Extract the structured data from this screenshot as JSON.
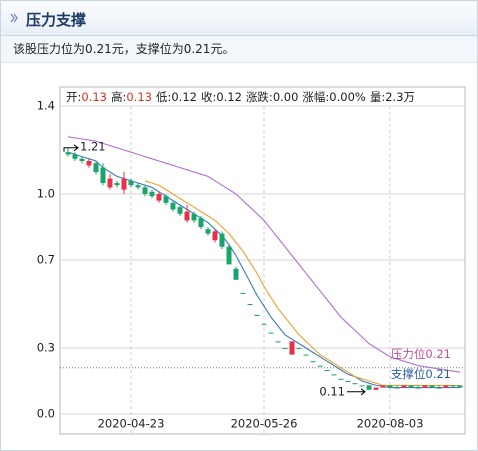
{
  "header": {
    "title": "压力支撑"
  },
  "summary": "该股压力位为0.21元，支撑位为0.21元。",
  "chart_data": {
    "type": "candlestick",
    "info": [
      {
        "label": "开:",
        "value": "0.13",
        "color": "#e0301e"
      },
      {
        "label": "高:",
        "value": "0.13",
        "color": "#e0301e"
      },
      {
        "label": "低:",
        "value": "0.12",
        "color": "#222222"
      },
      {
        "label": "收:",
        "value": "0.12",
        "color": "#222222"
      },
      {
        "label": "涨跌:",
        "value": "0.00",
        "color": "#222222"
      },
      {
        "label": "涨幅:",
        "value": "0.00%",
        "color": "#222222"
      },
      {
        "label": "量:",
        "value": "2.3万",
        "color": "#222222"
      }
    ],
    "categories": [
      null,
      null,
      null,
      null,
      null,
      null,
      null,
      null,
      null,
      "2020-04-23",
      null,
      null,
      null,
      null,
      null,
      null,
      null,
      null,
      null,
      null,
      null,
      null,
      null,
      null,
      null,
      null,
      null,
      null,
      "2020-05-26",
      null,
      null,
      null,
      null,
      null,
      null,
      null,
      null,
      null,
      null,
      null,
      null,
      null,
      null,
      null,
      null,
      null,
      "2020-08-03",
      null,
      null,
      null,
      null,
      null,
      null,
      null,
      null,
      null,
      null
    ],
    "open": [
      1.19,
      1.18,
      1.16,
      1.13,
      1.14,
      1.12,
      1.03,
      1.05,
      1.02,
      1.06,
      1.04,
      1.03,
      1.01,
      0.97,
      0.99,
      0.96,
      0.94,
      0.88,
      0.91,
      0.89,
      0.84,
      0.79,
      0.82,
      0.76,
      0.66,
      0.55,
      0.5,
      0.45,
      0.41,
      0.37,
      0.33,
      0.3,
      0.27,
      0.3,
      0.27,
      0.24,
      0.22,
      0.2,
      0.18,
      0.16,
      0.15,
      0.14,
      0.13,
      0.13,
      0.11,
      0.12,
      0.13,
      0.12,
      0.12,
      0.13,
      0.12,
      0.12,
      0.13,
      0.12,
      0.12,
      0.13,
      0.13
    ],
    "high": [
      1.21,
      1.19,
      1.17,
      1.16,
      1.15,
      1.14,
      1.09,
      1.06,
      1.1,
      1.07,
      1.05,
      1.04,
      1.02,
      1.01,
      1.0,
      0.97,
      0.95,
      0.95,
      0.92,
      0.9,
      0.85,
      0.84,
      0.83,
      0.77,
      0.67,
      0.55,
      0.5,
      0.45,
      0.41,
      0.37,
      0.33,
      0.3,
      0.33,
      0.3,
      0.27,
      0.24,
      0.22,
      0.2,
      0.18,
      0.16,
      0.15,
      0.14,
      0.13,
      0.13,
      0.12,
      0.13,
      0.13,
      0.13,
      0.13,
      0.13,
      0.13,
      0.13,
      0.13,
      0.13,
      0.13,
      0.13,
      0.13
    ],
    "low": [
      1.17,
      1.15,
      1.14,
      1.12,
      1.09,
      1.04,
      1.02,
      1.03,
      1.0,
      1.03,
      1.02,
      0.99,
      0.98,
      0.96,
      0.95,
      0.92,
      0.9,
      0.87,
      0.87,
      0.84,
      0.81,
      0.78,
      0.75,
      0.68,
      0.61,
      0.55,
      0.5,
      0.45,
      0.41,
      0.37,
      0.33,
      0.3,
      0.27,
      0.3,
      0.27,
      0.24,
      0.22,
      0.2,
      0.18,
      0.16,
      0.15,
      0.14,
      0.13,
      0.11,
      0.11,
      0.12,
      0.12,
      0.12,
      0.12,
      0.12,
      0.12,
      0.12,
      0.12,
      0.12,
      0.12,
      0.12,
      0.12
    ],
    "close": [
      1.18,
      1.16,
      1.15,
      1.15,
      1.1,
      1.05,
      1.07,
      1.04,
      1.07,
      1.04,
      1.03,
      1.0,
      0.99,
      1.0,
      0.96,
      0.93,
      0.91,
      0.92,
      0.88,
      0.85,
      0.82,
      0.83,
      0.76,
      0.68,
      0.61,
      0.55,
      0.5,
      0.45,
      0.41,
      0.37,
      0.33,
      0.3,
      0.33,
      0.3,
      0.27,
      0.24,
      0.22,
      0.2,
      0.18,
      0.16,
      0.15,
      0.14,
      0.13,
      0.11,
      0.12,
      0.13,
      0.12,
      0.12,
      0.13,
      0.12,
      0.12,
      0.13,
      0.12,
      0.12,
      0.13,
      0.13,
      0.12
    ],
    "up_color": "#e8304a",
    "down_color": "#1aa36a",
    "lines": [
      {
        "color": "#3b7bbf",
        "values": [
          1.19,
          1.18,
          1.17,
          1.16,
          1.15,
          1.12,
          1.1,
          1.08,
          1.07,
          1.06,
          1.05,
          1.04,
          1.03,
          1.01,
          0.99,
          0.97,
          0.95,
          0.93,
          0.91,
          0.89,
          0.87,
          0.84,
          0.81,
          0.77,
          0.72,
          0.66,
          0.6,
          0.54,
          0.49,
          0.44,
          0.4,
          0.36,
          0.34,
          0.32,
          0.3,
          0.28,
          0.26,
          0.24,
          0.22,
          0.2,
          0.18,
          0.17,
          0.15,
          0.14,
          0.13,
          0.125,
          0.12,
          0.12,
          0.12,
          0.12,
          0.12,
          0.12,
          0.12,
          0.12,
          0.12,
          0.12,
          0.12
        ]
      },
      {
        "color": "#f0a030",
        "values": [
          null,
          null,
          null,
          null,
          null,
          null,
          null,
          null,
          null,
          null,
          null,
          1.06,
          1.05,
          1.04,
          1.02,
          1.0,
          0.98,
          0.96,
          0.94,
          0.92,
          0.9,
          0.88,
          0.85,
          0.82,
          0.78,
          0.74,
          0.69,
          0.64,
          0.58,
          0.53,
          0.48,
          0.44,
          0.4,
          0.36,
          0.33,
          0.3,
          0.27,
          0.25,
          0.23,
          0.21,
          0.19,
          0.17,
          0.16,
          0.15,
          0.14,
          0.13,
          0.13,
          0.13,
          0.13,
          0.13,
          0.13,
          0.13,
          0.13,
          0.13,
          0.13,
          0.13,
          0.13
        ]
      },
      {
        "color": "#b070d0",
        "values": [
          1.26,
          1.255,
          1.25,
          1.245,
          1.24,
          1.23,
          1.22,
          1.21,
          1.2,
          1.19,
          1.18,
          1.17,
          1.16,
          1.15,
          1.14,
          1.13,
          1.12,
          1.11,
          1.1,
          1.09,
          1.08,
          1.06,
          1.04,
          1.02,
          1.0,
          0.97,
          0.94,
          0.91,
          0.88,
          0.84,
          0.8,
          0.76,
          0.72,
          0.68,
          0.64,
          0.6,
          0.56,
          0.52,
          0.48,
          0.44,
          0.41,
          0.38,
          0.35,
          0.32,
          0.3,
          0.28,
          0.26,
          0.25,
          0.24,
          0.23,
          0.22,
          0.215,
          0.21,
          0.205,
          0.2,
          0.195,
          0.19
        ]
      }
    ],
    "max_label": 1.21,
    "min_label": 0.11,
    "resistance": {
      "label": "压力位",
      "value": 0.21,
      "color": "#c0509a"
    },
    "support": {
      "label": "支撑位",
      "value": 0.21,
      "color": "#2a5ea0"
    },
    "ylim": [
      0,
      1.4
    ],
    "yticks": [
      {
        "value": 0,
        "label": "0.0"
      },
      0.3,
      0.7,
      {
        "value": 1,
        "label": "1.0"
      },
      1.4
    ],
    "grid": true
  }
}
